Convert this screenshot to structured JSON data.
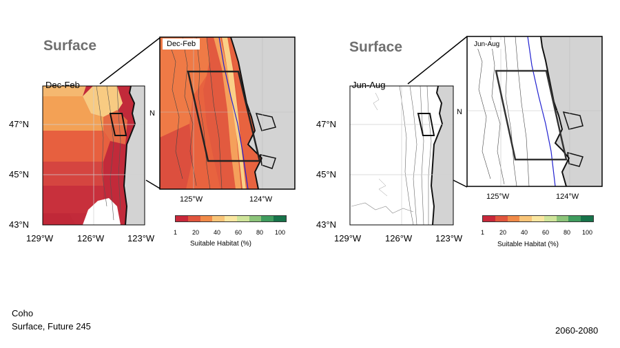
{
  "panels": [
    {
      "title": "Surface",
      "season_label": "Dec-Feb",
      "zoom_label": "Dec-Feb",
      "main_lon_ticks": [
        "129°W",
        "126°W",
        "123°W"
      ],
      "main_lat_ticks": [
        "47°N",
        "45°N",
        "43°N"
      ],
      "zoom_lon_ticks": [
        "125°W",
        "124°W"
      ],
      "colorbar_title": "Suitable Habitat (%)",
      "colorbar_ticks": [
        "1",
        "20",
        "40",
        "60",
        "80",
        "100"
      ]
    },
    {
      "title": "Surface",
      "season_label": "Jun-Aug",
      "zoom_label": "Jun-Aug",
      "main_lon_ticks": [
        "129°W",
        "126°W",
        "123°W"
      ],
      "main_lat_ticks": [
        "47°N",
        "45°N",
        "43°N"
      ],
      "zoom_lon_ticks": [
        "125°W",
        "124°W"
      ],
      "colorbar_title": "Suitable Habitat (%)",
      "colorbar_ticks": [
        "1",
        "20",
        "40",
        "60",
        "80",
        "100"
      ]
    }
  ],
  "colorbar_colors": [
    "#c8283a",
    "#e0553d",
    "#f08a48",
    "#f8c478",
    "#fae6a0",
    "#cfe49a",
    "#8cc47a",
    "#3f9c5e",
    "#17734a"
  ],
  "footer": {
    "species": "Coho",
    "scenario": "Surface, Future 245",
    "period": "2060-2080"
  }
}
